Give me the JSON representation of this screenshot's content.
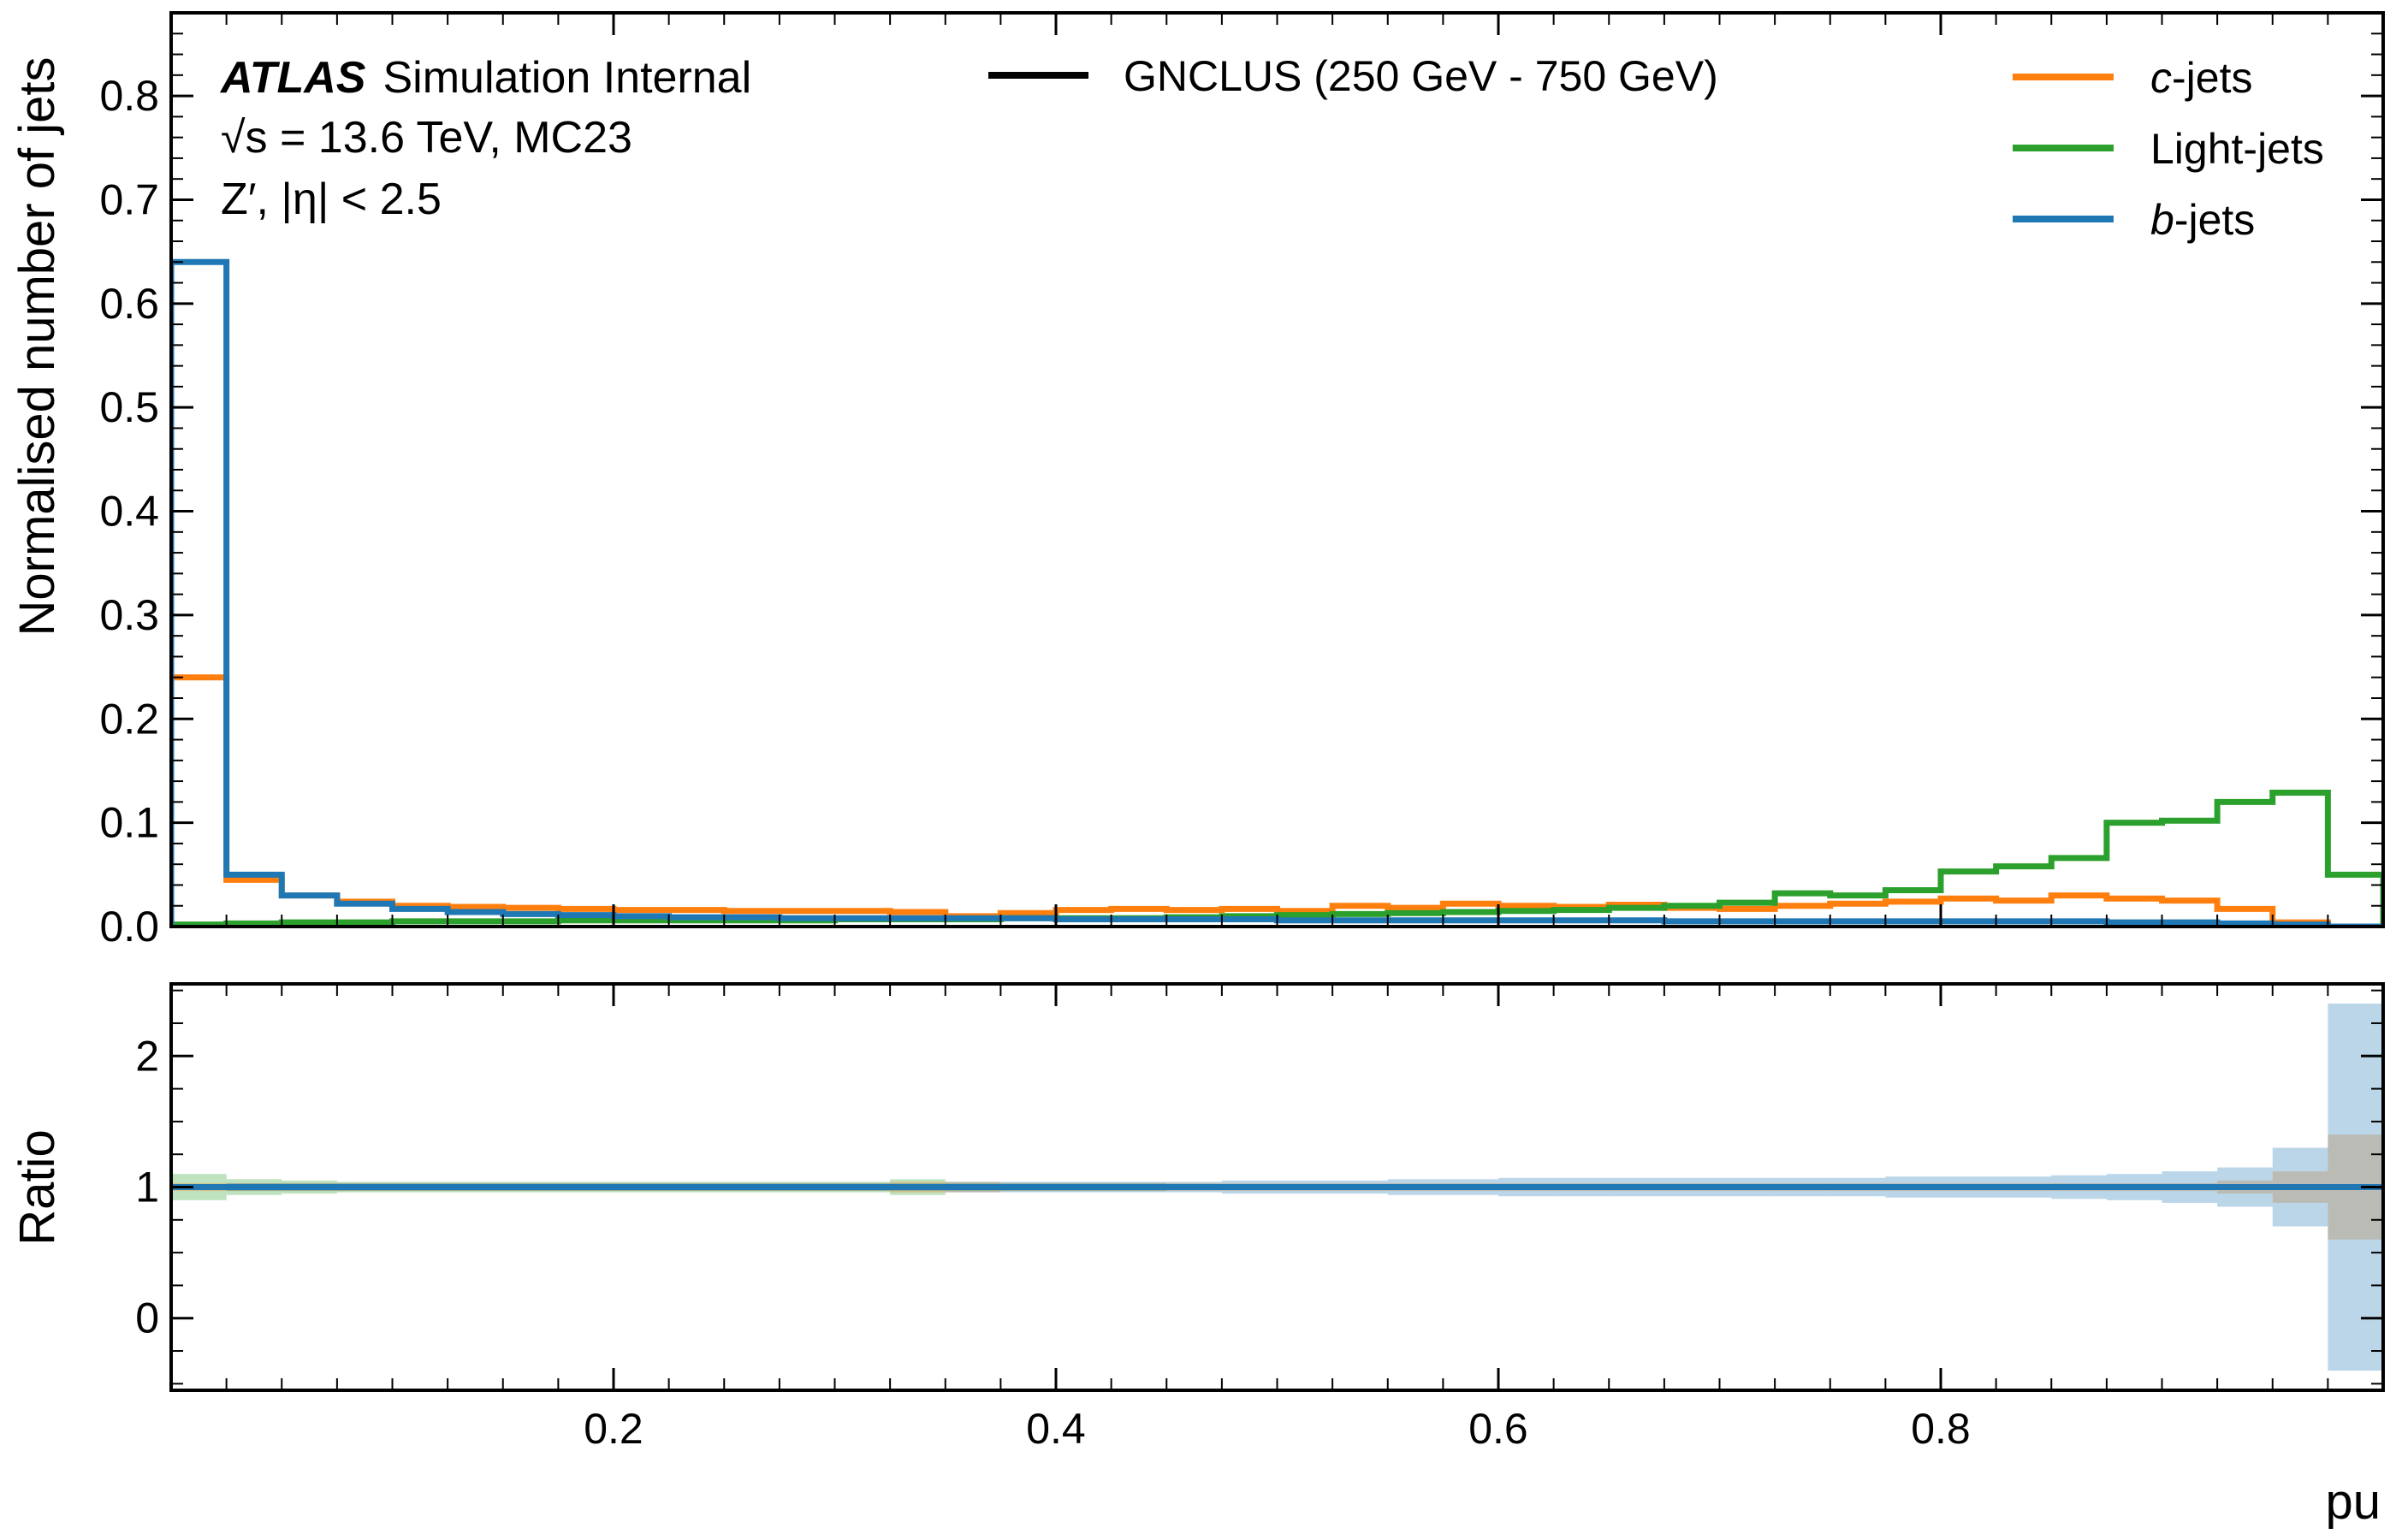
{
  "chart_data": {
    "type": "histogram_with_ratio",
    "annotation": {
      "experiment": "ATLAS",
      "status": "Simulation Internal",
      "sqrt_s": "√s = 13.6 TeV, MC23",
      "selection": "Z′, |η| < 2.5"
    },
    "style_legend": {
      "label": "GNCLUS (250 GeV - 750 GeV)",
      "color": "#000000"
    },
    "xlabel": "pu",
    "xlim": [
      0,
      1
    ],
    "x_ticks": [
      0.2,
      0.4,
      0.6,
      0.8
    ],
    "x_tick_labels": [
      "0.2",
      "0.4",
      "0.6",
      "0.8"
    ],
    "bin_edges": [
      0,
      0.025,
      0.05,
      0.075,
      0.1,
      0.125,
      0.15,
      0.175,
      0.2,
      0.225,
      0.25,
      0.275,
      0.3,
      0.325,
      0.35,
      0.375,
      0.4,
      0.425,
      0.45,
      0.475,
      0.5,
      0.525,
      0.55,
      0.575,
      0.6,
      0.625,
      0.65,
      0.675,
      0.7,
      0.725,
      0.75,
      0.775,
      0.8,
      0.825,
      0.85,
      0.875,
      0.9,
      0.925,
      0.95,
      0.975,
      1.0
    ],
    "main_panel": {
      "ylabel": "Normalised number of jets",
      "ylim": [
        0,
        0.88
      ],
      "y_ticks": [
        0.0,
        0.1,
        0.2,
        0.3,
        0.4,
        0.5,
        0.6,
        0.7,
        0.8
      ],
      "y_tick_labels": [
        "0.0",
        "0.1",
        "0.2",
        "0.3",
        "0.4",
        "0.5",
        "0.6",
        "0.7",
        "0.8"
      ],
      "series": [
        {
          "name": "c-jets",
          "name_prefix": "c",
          "name_suffix": "-jets",
          "color": "#ff7f0e",
          "values": [
            0.24,
            0.045,
            0.03,
            0.024,
            0.02,
            0.019,
            0.018,
            0.017,
            0.016,
            0.016,
            0.015,
            0.015,
            0.015,
            0.014,
            0.01,
            0.013,
            0.016,
            0.017,
            0.016,
            0.017,
            0.015,
            0.02,
            0.018,
            0.022,
            0.02,
            0.019,
            0.021,
            0.018,
            0.017,
            0.02,
            0.022,
            0.024,
            0.027,
            0.025,
            0.03,
            0.027,
            0.025,
            0.017,
            0.004,
            0.0
          ]
        },
        {
          "name": "Light-jets",
          "color": "#2ca02c",
          "values": [
            0.002,
            0.003,
            0.004,
            0.004,
            0.005,
            0.005,
            0.005,
            0.006,
            0.006,
            0.006,
            0.006,
            0.006,
            0.007,
            0.007,
            0.007,
            0.008,
            0.008,
            0.008,
            0.009,
            0.01,
            0.011,
            0.012,
            0.013,
            0.014,
            0.015,
            0.016,
            0.018,
            0.02,
            0.023,
            0.032,
            0.03,
            0.035,
            0.053,
            0.058,
            0.066,
            0.1,
            0.102,
            0.12,
            0.129,
            0.05
          ]
        },
        {
          "name": "b-jets",
          "name_prefix": "b",
          "name_suffix": "-jets",
          "color": "#1f77b4",
          "values": [
            0.64,
            0.05,
            0.03,
            0.022,
            0.017,
            0.014,
            0.012,
            0.011,
            0.01,
            0.009,
            0.009,
            0.008,
            0.008,
            0.008,
            0.008,
            0.008,
            0.007,
            0.007,
            0.007,
            0.007,
            0.006,
            0.006,
            0.006,
            0.006,
            0.006,
            0.006,
            0.006,
            0.005,
            0.005,
            0.005,
            0.005,
            0.005,
            0.005,
            0.005,
            0.005,
            0.004,
            0.004,
            0.003,
            0.002,
            0.0
          ]
        }
      ]
    },
    "ratio_panel": {
      "ylabel": "Ratio",
      "ylim": [
        -0.55,
        2.55
      ],
      "y_ticks": [
        0,
        1,
        2
      ],
      "y_tick_labels": [
        "0",
        "1",
        "2"
      ],
      "reference_line": 1,
      "bands": [
        {
          "series": "Light-jets",
          "color": "#2ca02c",
          "half_widths": [
            0.1,
            0.06,
            0.05,
            0.04,
            0.04,
            0.04,
            0.04,
            0.04,
            0.04,
            0.04,
            0.04,
            0.04,
            0.04,
            0.06,
            0.03,
            0.03,
            0.03,
            0.03,
            0.02,
            0.02,
            0.02,
            0.02,
            0.02,
            0.02,
            0.02,
            0.02,
            0.02,
            0.02,
            0.02,
            0.02,
            0.02,
            0.02,
            0.02,
            0.02,
            0.02,
            0.02,
            0.02,
            0.02,
            0.02,
            0.02
          ]
        },
        {
          "series": "c-jets",
          "color": "#ff7f0e",
          "half_widths": [
            0.03,
            0.03,
            0.03,
            0.03,
            0.03,
            0.03,
            0.03,
            0.03,
            0.03,
            0.03,
            0.03,
            0.03,
            0.03,
            0.04,
            0.04,
            0.03,
            0.03,
            0.03,
            0.03,
            0.03,
            0.03,
            0.03,
            0.03,
            0.03,
            0.03,
            0.03,
            0.03,
            0.03,
            0.03,
            0.03,
            0.03,
            0.03,
            0.03,
            0.03,
            0.03,
            0.03,
            0.03,
            0.05,
            0.12,
            0.4
          ]
        },
        {
          "series": "b-jets",
          "color": "#1f77b4",
          "half_widths": [
            0.02,
            0.03,
            0.03,
            0.03,
            0.03,
            0.03,
            0.03,
            0.03,
            0.03,
            0.03,
            0.03,
            0.03,
            0.03,
            0.03,
            0.04,
            0.04,
            0.04,
            0.04,
            0.04,
            0.05,
            0.05,
            0.05,
            0.06,
            0.06,
            0.07,
            0.07,
            0.07,
            0.07,
            0.07,
            0.07,
            0.07,
            0.08,
            0.08,
            0.08,
            0.09,
            0.1,
            0.12,
            0.15,
            0.3,
            1.4
          ]
        }
      ]
    }
  }
}
